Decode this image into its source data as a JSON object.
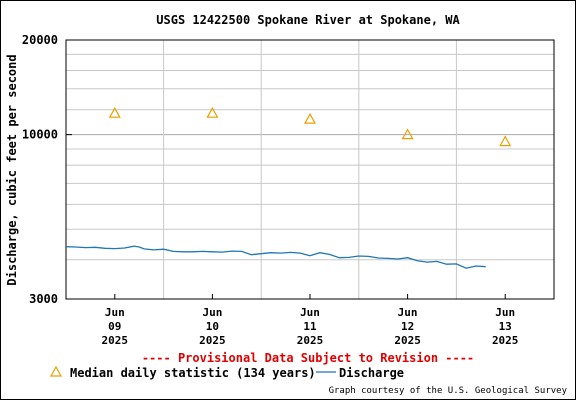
{
  "chart_data": {
    "type": "line",
    "title": "USGS 12422500 Spokane River at Spokane, WA",
    "ylabel": "Discharge, cubic feet per second",
    "xlabel": "",
    "yscale": "log",
    "ylim": [
      3000,
      20000
    ],
    "yticks": [
      "20000",
      "10000",
      "3000"
    ],
    "xlim": [
      0,
      5
    ],
    "xticks": [
      {
        "x": 0.5,
        "line1": "Jun",
        "line2": "09",
        "line3": "2025"
      },
      {
        "x": 1.5,
        "line1": "Jun",
        "line2": "10",
        "line3": "2025"
      },
      {
        "x": 2.5,
        "line1": "Jun",
        "line2": "11",
        "line3": "2025"
      },
      {
        "x": 3.5,
        "line1": "Jun",
        "line2": "12",
        "line3": "2025"
      },
      {
        "x": 4.5,
        "line1": "Jun",
        "line2": "13",
        "line3": "2025"
      }
    ],
    "grid": true,
    "colors": {
      "discharge": "#1f77b4",
      "median": "#e8a000",
      "provisional": "#e00000"
    },
    "series": [
      {
        "name": "Median daily statistic (134 years)",
        "type": "scatter",
        "marker": "triangle",
        "x": [
          0.5,
          1.5,
          2.5,
          3.5,
          4.5
        ],
        "y": [
          11700,
          11700,
          11200,
          10000,
          9500
        ]
      },
      {
        "name": "Discharge",
        "type": "line",
        "x": [
          0.0,
          0.1,
          0.2,
          0.3,
          0.4,
          0.5,
          0.6,
          0.7,
          0.75,
          0.8,
          0.9,
          1.0,
          1.1,
          1.2,
          1.3,
          1.4,
          1.5,
          1.6,
          1.7,
          1.8,
          1.9,
          2.0,
          2.1,
          2.2,
          2.3,
          2.4,
          2.5,
          2.6,
          2.7,
          2.8,
          2.9,
          3.0,
          3.1,
          3.2,
          3.3,
          3.4,
          3.5,
          3.6,
          3.7,
          3.8,
          3.9,
          4.0,
          4.1,
          4.2,
          4.3
        ],
        "y": [
          4400,
          4390,
          4370,
          4380,
          4350,
          4340,
          4360,
          4420,
          4390,
          4330,
          4300,
          4320,
          4250,
          4240,
          4240,
          4250,
          4240,
          4230,
          4260,
          4250,
          4150,
          4180,
          4210,
          4200,
          4220,
          4200,
          4120,
          4210,
          4160,
          4060,
          4070,
          4110,
          4100,
          4050,
          4040,
          4020,
          4060,
          3970,
          3930,
          3950,
          3870,
          3880,
          3760,
          3820,
          3800
        ]
      }
    ],
    "legend_position": "bottom"
  },
  "provisional_note": "---- Provisional Data Subject to Revision ----",
  "legend": {
    "median_label": "Median daily statistic (134 years)",
    "discharge_label": "Discharge"
  },
  "credit": "Graph courtesy of the U.S. Geological Survey"
}
